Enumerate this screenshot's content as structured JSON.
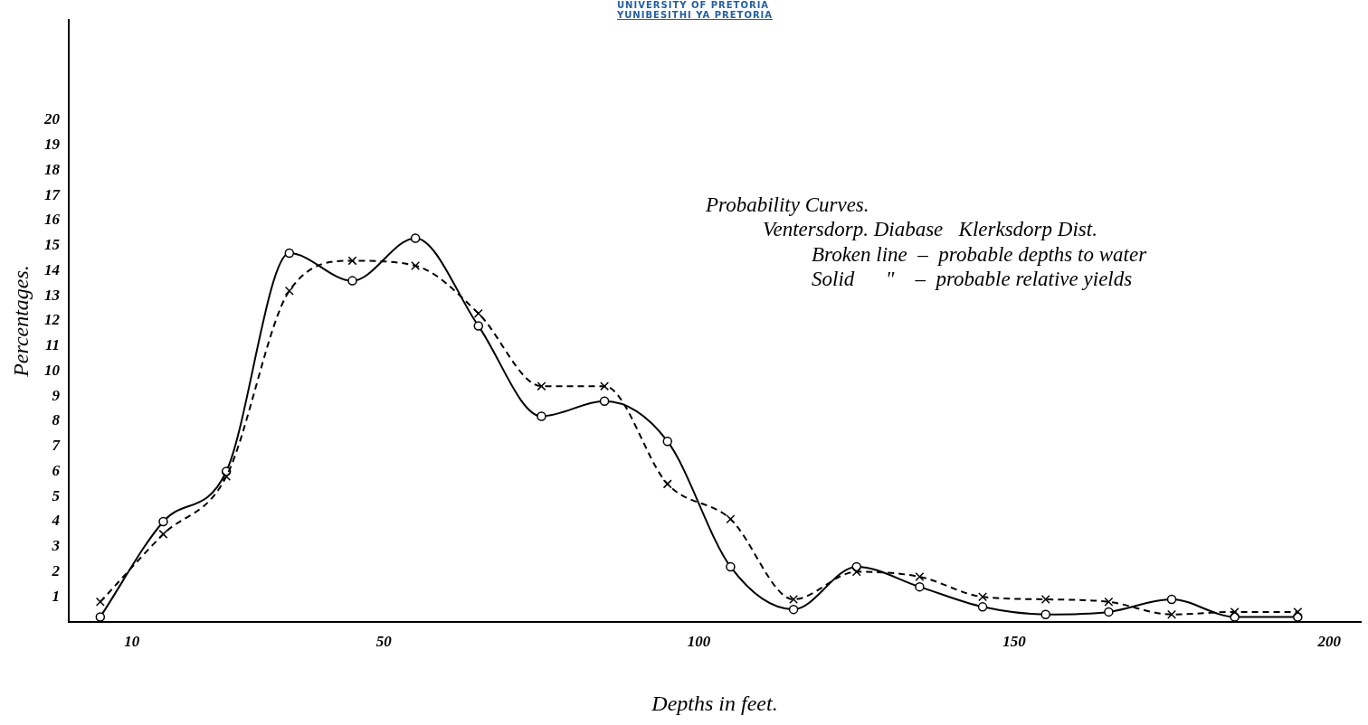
{
  "chart_data": {
    "type": "line",
    "header": [
      "UNIVERSITY OF PRETORIA",
      "YUNIBESITHI YA PRETORIA"
    ],
    "annotations": [
      "Probability Curves.",
      "Ventersdorp. Diabase   Klerksdorp Dist.",
      "Broken line  –  probable depths to water",
      "Solid      \"    –  probable relative yields"
    ],
    "x_label": "Depths in feet.",
    "y_label": "Percentages.",
    "x": [
      5,
      15,
      25,
      35,
      45,
      55,
      65,
      75,
      85,
      95,
      105,
      115,
      125,
      135,
      145,
      155,
      165,
      175,
      185,
      195
    ],
    "series": [
      {
        "color": "#000000",
        "line_style": "dashed",
        "marker": "x",
        "values": [
          0.8,
          3.5,
          5.8,
          13.2,
          14.4,
          14.2,
          12.3,
          9.4,
          9.4,
          5.5,
          4.1,
          0.9,
          2.0,
          1.8,
          1.0,
          0.9,
          0.8,
          0.3,
          0.4,
          0.4
        ]
      },
      {
        "color": "#000000",
        "line_style": "solid",
        "marker": "circle",
        "values": [
          0.2,
          4.0,
          6.0,
          14.7,
          13.6,
          15.3,
          11.8,
          8.2,
          8.8,
          7.2,
          2.2,
          0.5,
          2.2,
          1.4,
          0.6,
          0.3,
          0.4,
          0.9,
          0.2,
          0.2
        ]
      }
    ],
    "xlim": [
      0,
      205
    ],
    "xticks": [
      10,
      50,
      100,
      150,
      200
    ],
    "ylim": [
      0,
      24
    ],
    "yticks": [
      1,
      2,
      3,
      4,
      5,
      6,
      7,
      8,
      9,
      10,
      11,
      12,
      13,
      14,
      15,
      16,
      17,
      18,
      19,
      20
    ],
    "grid": false
  }
}
